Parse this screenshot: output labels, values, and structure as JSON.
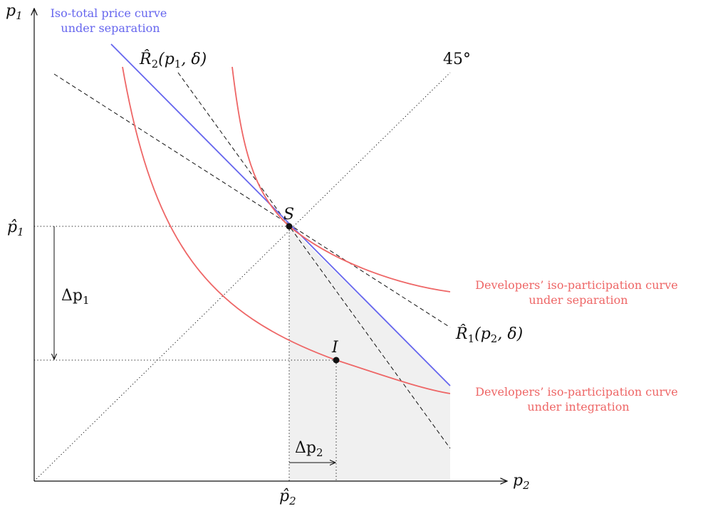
{
  "axes": {
    "y": {
      "base": "p",
      "sub": "1"
    },
    "x": {
      "base": "p",
      "sub": "2"
    }
  },
  "ticks": {
    "p1_hat": {
      "base": "p̂",
      "sub": "1"
    },
    "p2_hat": {
      "base": "p̂",
      "sub": "2"
    }
  },
  "points": {
    "S": "S",
    "I": "I"
  },
  "deltas": {
    "dp1": {
      "base": "Δp",
      "sub": "1"
    },
    "dp2": {
      "base": "Δp",
      "sub": "2"
    }
  },
  "reaction": {
    "R1": {
      "base": "R̂",
      "sub": "1",
      "args": "(p",
      "args_sub": "2",
      "tail": ", δ)"
    },
    "R2": {
      "base": "R̂",
      "sub": "2",
      "args": "(p",
      "args_sub": "1",
      "tail": ", δ)"
    }
  },
  "angle_label": "45°",
  "curve_labels": {
    "iso_total": [
      "Iso-total price curve",
      "under separation"
    ],
    "dev_sep": [
      "Developers’ iso-participation curve",
      "under separation"
    ],
    "dev_int": [
      "Developers’ iso-participation curve",
      "under integration"
    ]
  },
  "colors": {
    "blue": "#6666ee",
    "red": "#ee6666",
    "shade": "#f0f0f0",
    "ink": "#111111"
  }
}
